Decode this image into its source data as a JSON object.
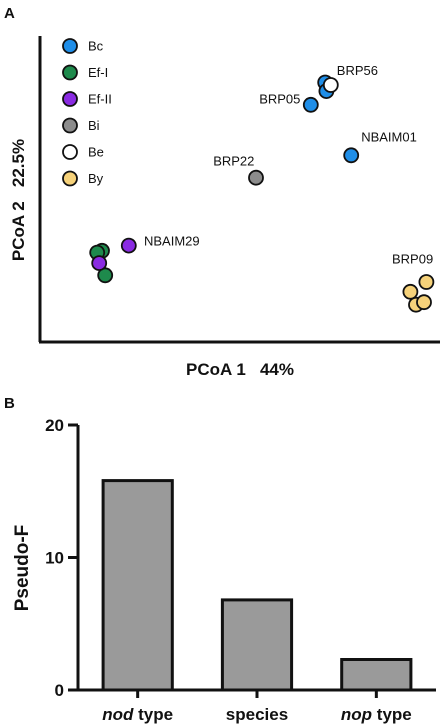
{
  "chart_data": [
    {
      "panel": "A",
      "type": "scatter",
      "xlabel": "PCoA 1   44%",
      "ylabel": "PCoA 2   22.5%",
      "legend": [
        {
          "name": "Bc",
          "color": "#1f8ee8"
        },
        {
          "name": "Ef-I",
          "color": "#1e8a4c"
        },
        {
          "name": "Ef-II",
          "color": "#8a2be2"
        },
        {
          "name": "Bi",
          "color": "#8c8c8c"
        },
        {
          "name": "Be",
          "color": "#ffffff"
        },
        {
          "name": "By",
          "color": "#f6d27a"
        }
      ],
      "points": [
        {
          "group": "Bc",
          "x": 0.713,
          "y": 0.848
        },
        {
          "group": "Bc",
          "x": 0.716,
          "y": 0.82
        },
        {
          "group": "Bc",
          "x": 0.677,
          "y": 0.775
        },
        {
          "group": "Bc",
          "x": 0.778,
          "y": 0.61
        },
        {
          "group": "Be",
          "x": 0.727,
          "y": 0.84
        },
        {
          "group": "Ef-I",
          "x": 0.155,
          "y": 0.298
        },
        {
          "group": "Ef-I",
          "x": 0.143,
          "y": 0.292
        },
        {
          "group": "Ef-I",
          "x": 0.163,
          "y": 0.218
        },
        {
          "group": "Ef-II",
          "x": 0.148,
          "y": 0.258
        },
        {
          "group": "Ef-II",
          "x": 0.222,
          "y": 0.315
        },
        {
          "group": "Bi",
          "x": 0.54,
          "y": 0.537
        },
        {
          "group": "By",
          "x": 0.966,
          "y": 0.196
        },
        {
          "group": "By",
          "x": 0.926,
          "y": 0.164
        },
        {
          "group": "By",
          "x": 0.94,
          "y": 0.122
        },
        {
          "group": "By",
          "x": 0.96,
          "y": 0.13
        }
      ],
      "point_labels": [
        {
          "text": "BRP56",
          "x": 0.742,
          "y": 0.872
        },
        {
          "text": "BRP05",
          "x": 0.548,
          "y": 0.78
        },
        {
          "text": "NBAIM01",
          "x": 0.803,
          "y": 0.655
        },
        {
          "text": "BRP22",
          "x": 0.433,
          "y": 0.576
        },
        {
          "text": "NBAIM29",
          "x": 0.26,
          "y": 0.315
        },
        {
          "text": "BRP09",
          "x": 0.88,
          "y": 0.256
        }
      ],
      "xlim": [
        0,
        1
      ],
      "ylim": [
        0,
        1
      ]
    },
    {
      "panel": "B",
      "type": "bar",
      "categories": [
        {
          "italic": "nod",
          "rest": " type"
        },
        {
          "italic": "",
          "rest": "species"
        },
        {
          "italic": "nop",
          "rest": " type"
        }
      ],
      "values": [
        15.8,
        6.8,
        2.3
      ],
      "ylabel": "Pseudo-F",
      "ylim": [
        0,
        20
      ],
      "yticks": [
        "0",
        "10",
        "20"
      ],
      "bar_color": "#9a9a9a"
    }
  ],
  "panel_letters": {
    "a": "A",
    "b": "B"
  }
}
